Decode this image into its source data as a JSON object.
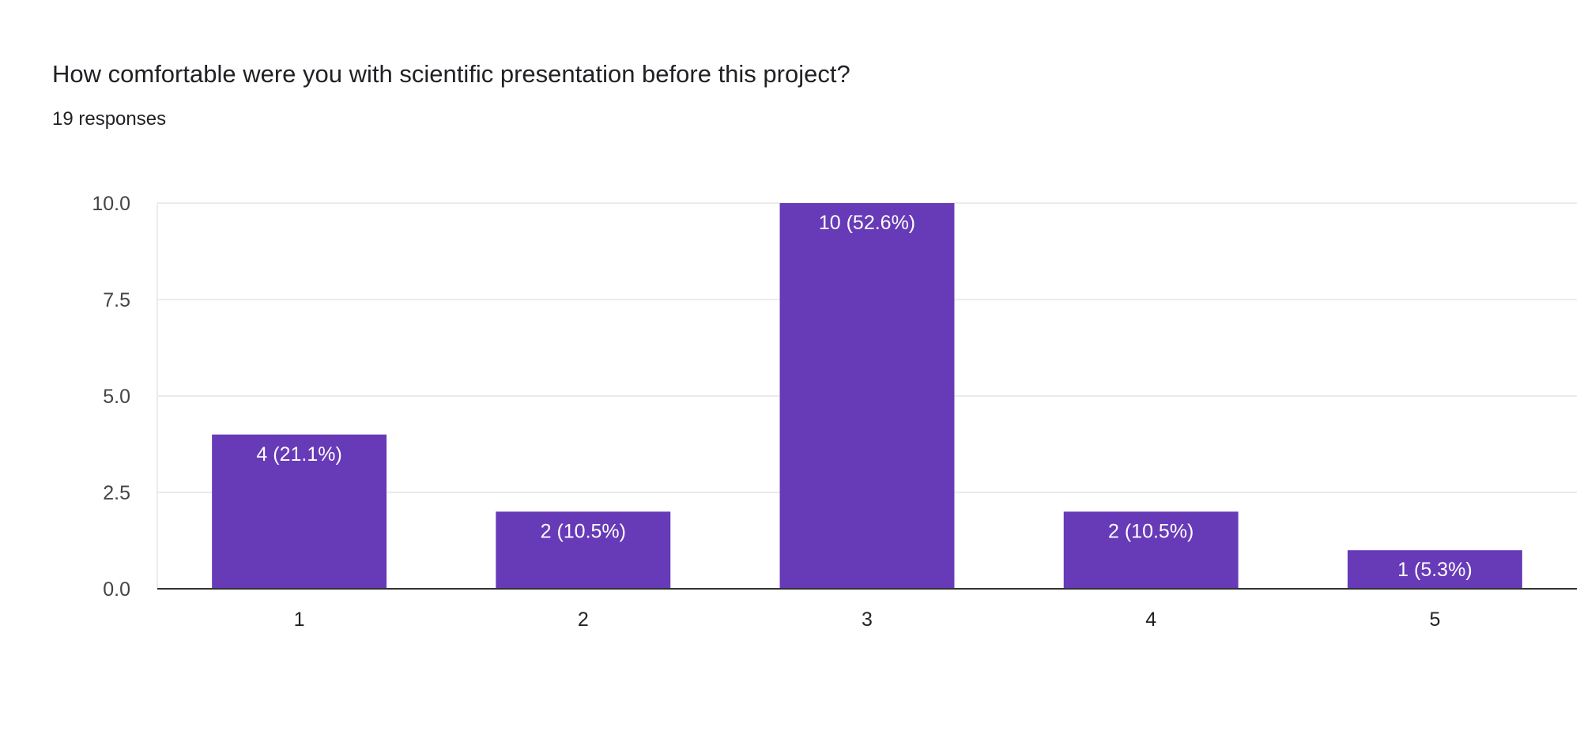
{
  "chart_data": {
    "type": "bar",
    "title": "How comfortable were you with scientific presentation before this project?",
    "subtitle": "19 responses",
    "categories": [
      "1",
      "2",
      "3",
      "4",
      "5"
    ],
    "values": [
      4,
      2,
      10,
      2,
      1
    ],
    "data_labels": [
      "4 (21.1%)",
      "2 (10.5%)",
      "10 (52.6%)",
      "2 (10.5%)",
      "1 (5.3%)"
    ],
    "ylim": [
      0,
      10
    ],
    "yticks": [
      "0.0",
      "2.5",
      "5.0",
      "7.5",
      "10.0"
    ],
    "xlabel": "",
    "ylabel": "",
    "grid": true,
    "bar_color": "#673ab7"
  }
}
